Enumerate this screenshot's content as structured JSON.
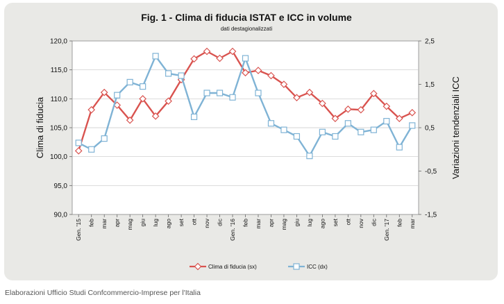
{
  "footer": "Elaborazioni Ufficio Studi Confcommercio-Imprese per l'Italia",
  "colors": {
    "fiducia": "#d9534f",
    "icc": "#7fb3d5",
    "grid": "#c8c8c8",
    "card": "#e9e9e6"
  },
  "chart_data": {
    "type": "line",
    "title": "Fig. 1 - Clima di fiducia ISTAT e ICC in volume",
    "subtitle": "dati destagionalizzati",
    "ylabel": "Clima di fiducia",
    "y2label": "Variazioni tendenziali ICC",
    "ylim": [
      90,
      120
    ],
    "yticks": [
      "90,0",
      "95,0",
      "100,0",
      "105,0",
      "110,0",
      "115,0",
      "120,0"
    ],
    "y2lim": [
      -1.5,
      2.5
    ],
    "y2ticks": [
      "-1,5",
      "-0,5",
      "0,5",
      "1,5",
      "2,5"
    ],
    "grid": true,
    "legend": "bottom",
    "categories": [
      "Gen. '15",
      "feb",
      "mar",
      "apr",
      "mag",
      "giu",
      "lug",
      "ago",
      "set",
      "ott",
      "nov",
      "dic",
      "Gen. '16",
      "feb",
      "mar",
      "apr",
      "mag",
      "giu",
      "lug",
      "ago",
      "set",
      "ott",
      "nov",
      "dic",
      "Gen. '17",
      "feb",
      "mar"
    ],
    "series": [
      {
        "name": "Clima di fiducia (sx)",
        "axis": "left",
        "marker": "diamond",
        "values": [
          101.0,
          108.1,
          111.1,
          108.9,
          106.3,
          110.0,
          107.0,
          109.6,
          113.3,
          116.9,
          118.2,
          117.0,
          118.2,
          114.5,
          114.9,
          114.0,
          112.5,
          110.2,
          111.1,
          109.2,
          106.6,
          108.2,
          108.1,
          110.9,
          108.7,
          106.6,
          107.6
        ]
      },
      {
        "name": "ICC (dx)",
        "axis": "right",
        "marker": "square",
        "values": [
          0.15,
          0.0,
          0.25,
          1.25,
          1.55,
          1.45,
          2.15,
          1.75,
          1.7,
          0.75,
          1.3,
          1.3,
          1.2,
          2.1,
          1.3,
          0.6,
          0.45,
          0.3,
          -0.15,
          0.4,
          0.3,
          0.6,
          0.4,
          0.45,
          0.65,
          0.05,
          0.55
        ]
      }
    ]
  }
}
